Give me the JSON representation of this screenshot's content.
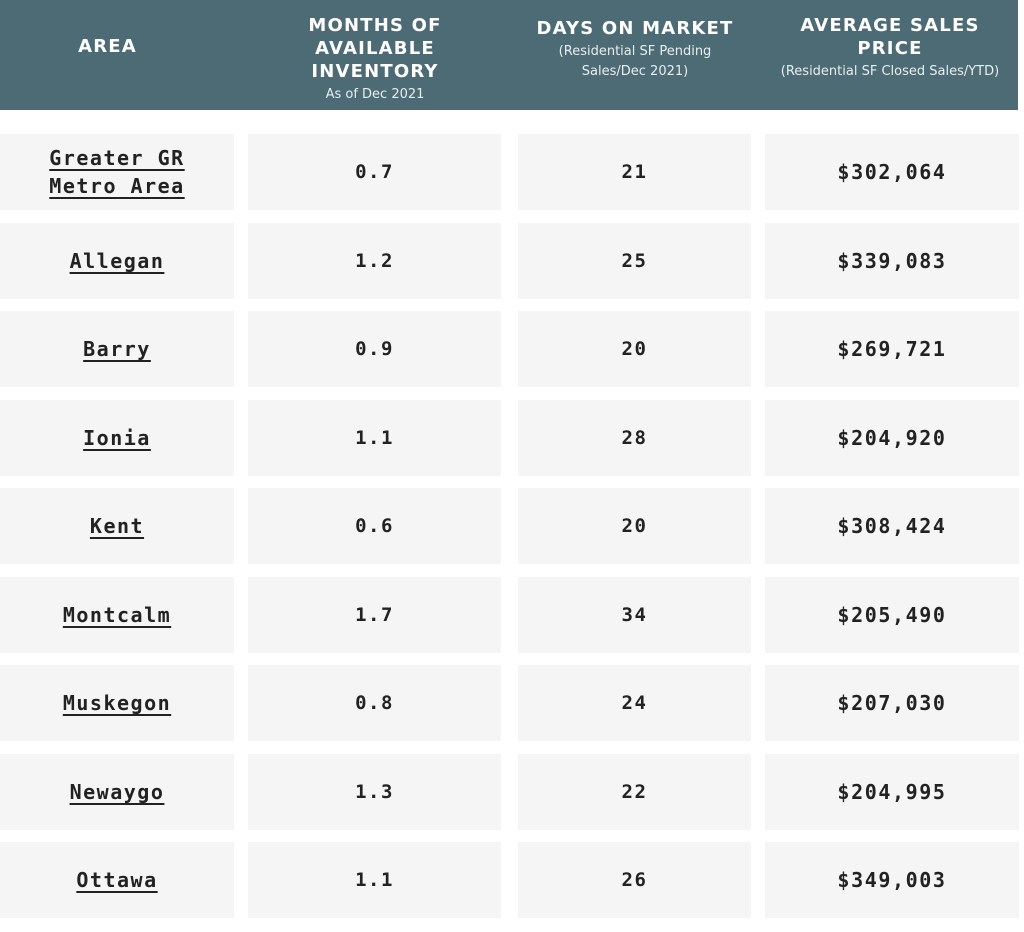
{
  "header": {
    "area": {
      "title": "AREA"
    },
    "inventory": {
      "title": "MONTHS OF AVAILABLE\nINVENTORY",
      "sub": "As of Dec 2021"
    },
    "days": {
      "title": "DAYS ON MARKET",
      "sub": "(Residential SF Pending\nSales/Dec 2021)"
    },
    "price": {
      "title": "AVERAGE SALES\nPRICE",
      "sub": "(Residential SF Closed Sales/YTD)"
    }
  },
  "rows": [
    {
      "area": "Greater GR\nMetro Area",
      "inventory": "0.7",
      "days": "21",
      "price": "$302,064"
    },
    {
      "area": "Allegan",
      "inventory": "1.2",
      "days": "25",
      "price": "$339,083"
    },
    {
      "area": "Barry",
      "inventory": "0.9",
      "days": "20",
      "price": "$269,721"
    },
    {
      "area": "Ionia",
      "inventory": "1.1",
      "days": "28",
      "price": "$204,920"
    },
    {
      "area": "Kent",
      "inventory": "0.6",
      "days": "20",
      "price": "$308,424"
    },
    {
      "area": "Montcalm",
      "inventory": "1.7",
      "days": "34",
      "price": "$205,490"
    },
    {
      "area": "Muskegon",
      "inventory": "0.8",
      "days": "24",
      "price": "$207,030"
    },
    {
      "area": "Newaygo",
      "inventory": "1.3",
      "days": "22",
      "price": "$204,995"
    },
    {
      "area": "Ottawa",
      "inventory": "1.1",
      "days": "26",
      "price": "$349,003"
    }
  ],
  "colors": {
    "header_bg": "#4d6b75",
    "cell_bg": "#f5f5f5",
    "text": "#222222"
  }
}
